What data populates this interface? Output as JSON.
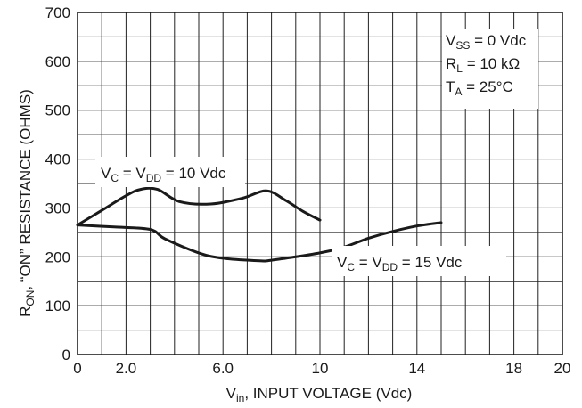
{
  "chart_data": {
    "type": "line",
    "title": "",
    "xlabel": {
      "main": "V",
      "sub": "in",
      "rest": ", INPUT VOLTAGE (Vdc)"
    },
    "ylabel": {
      "main": "R",
      "sub": "ON",
      "rest": ", “ON” RESISTANCE (OHMS)"
    },
    "xlim": [
      0,
      20
    ],
    "ylim": [
      0,
      700
    ],
    "x_ticks": [
      "0",
      "2.0",
      "6.0",
      "10",
      "14",
      "18",
      "20"
    ],
    "y_ticks": [
      "0",
      "100",
      "200",
      "300",
      "400",
      "500",
      "600",
      "700"
    ],
    "grid": true,
    "conditions": [
      {
        "main": "V",
        "sub": "SS",
        "rest": " = 0 Vdc"
      },
      {
        "main": "R",
        "sub": "L",
        "rest": " = 10 kΩ"
      },
      {
        "main": "T",
        "sub": "A",
        "rest": " = 25°C"
      }
    ],
    "series": [
      {
        "name": {
          "p1": "V",
          "s1": "C",
          "p2": " = V",
          "s2": "DD",
          "p3": " = 10 Vdc"
        },
        "points": [
          [
            0,
            265
          ],
          [
            1,
            295
          ],
          [
            2,
            325
          ],
          [
            2.6,
            338
          ],
          [
            3.3,
            338
          ],
          [
            4.2,
            313
          ],
          [
            5.5,
            308
          ],
          [
            6.8,
            320
          ],
          [
            7.8,
            335
          ],
          [
            8.6,
            315
          ],
          [
            9.3,
            293
          ],
          [
            10,
            275
          ]
        ]
      },
      {
        "name": {
          "p1": "V",
          "s1": "C",
          "p2": " = V",
          "s2": "DD",
          "p3": " = 15 Vdc"
        },
        "points": [
          [
            0,
            265
          ],
          [
            1.5,
            261
          ],
          [
            3,
            256
          ],
          [
            3.6,
            237
          ],
          [
            5,
            208
          ],
          [
            6,
            197
          ],
          [
            7.5,
            192
          ],
          [
            8,
            193
          ],
          [
            10,
            208
          ],
          [
            11,
            220
          ],
          [
            12,
            238
          ],
          [
            13,
            252
          ],
          [
            14,
            263
          ],
          [
            15,
            270
          ]
        ]
      }
    ]
  }
}
